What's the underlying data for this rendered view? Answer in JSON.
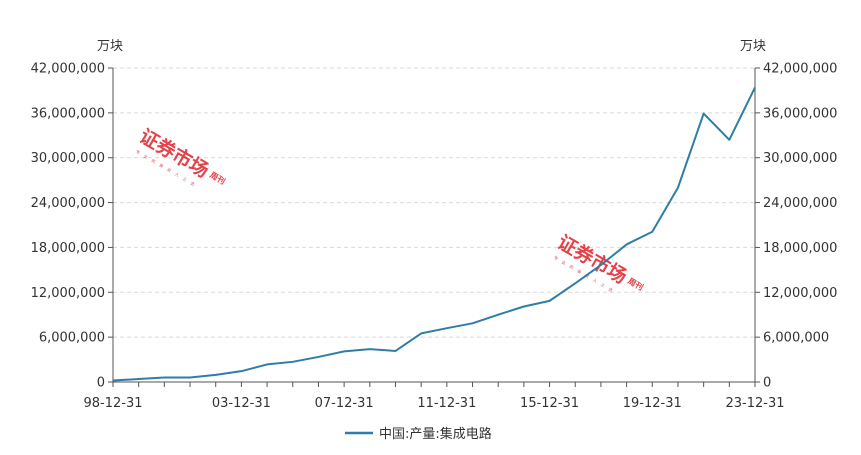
{
  "chart_data": {
    "type": "line",
    "title": "",
    "y_unit_left": "万块",
    "y_unit_right": "万块",
    "ylim": [
      0,
      42000000
    ],
    "y_ticks": [
      0,
      6000000,
      12000000,
      18000000,
      24000000,
      30000000,
      36000000,
      42000000
    ],
    "y_tick_labels": [
      "0",
      "6,000,000",
      "12,000,000",
      "18,000,000",
      "24,000,000",
      "30,000,000",
      "36,000,000",
      "42,000,000"
    ],
    "x_tick_labels": [
      "98-12-31",
      "03-12-31",
      "07-12-31",
      "11-12-31",
      "15-12-31",
      "19-12-31",
      "23-12-31"
    ],
    "x_tick_years": [
      1998,
      2003,
      2007,
      2011,
      2015,
      2019,
      2023
    ],
    "x_range_years": [
      1998,
      2023
    ],
    "grid": "horizontal dashed",
    "legend_position": "bottom-center",
    "series": [
      {
        "name": "中国:产量:集成电路",
        "color": "#2e7ea6",
        "x": [
          "1998-12-31",
          "1999-12-31",
          "2000-12-31",
          "2001-12-31",
          "2002-12-31",
          "2003-12-31",
          "2004-12-31",
          "2005-12-31",
          "2006-12-31",
          "2007-12-31",
          "2008-12-31",
          "2009-12-31",
          "2010-12-31",
          "2011-12-31",
          "2012-12-31",
          "2013-12-31",
          "2014-12-31",
          "2015-12-31",
          "2016-12-31",
          "2017-12-31",
          "2018-12-31",
          "2019-12-31",
          "2020-12-31",
          "2021-12-31",
          "2022-12-31",
          "2023-12-31"
        ],
        "values": [
          200000,
          400000,
          600000,
          600000,
          950000,
          1450000,
          2350000,
          2700000,
          3350000,
          4100000,
          4400000,
          4150000,
          6500000,
          7200000,
          7850000,
          9000000,
          10100000,
          10850000,
          13200000,
          15650000,
          18400000,
          20100000,
          26000000,
          35900000,
          32400000,
          39400000
        ]
      }
    ]
  },
  "watermark": {
    "main_text": "证券市场",
    "side_text": "周刊",
    "sub_text": "专业的投资人之选"
  }
}
